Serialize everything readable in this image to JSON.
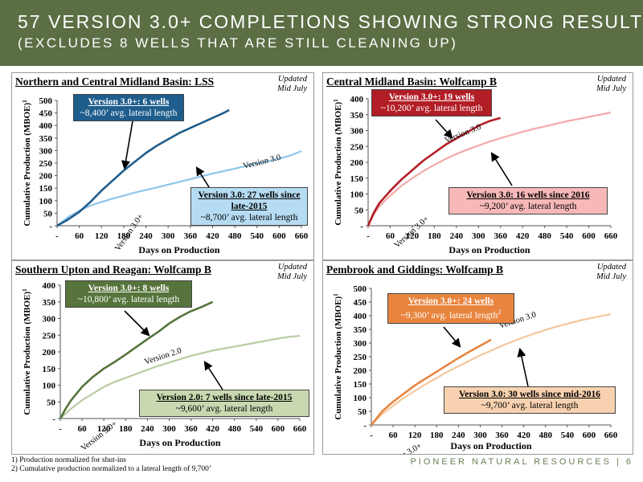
{
  "header": {
    "title": "57 VERSION 3.0+ COMPLETIONS SHOWING STRONG RESULTS",
    "subtitle": "(EXCLUDES 8 WELLS THAT ARE STILL CLEANING UP)"
  },
  "footnotes": [
    "1)   Production normalized for shut-ins",
    "2)   Cumulative production normalized to a lateral length of 9,700’"
  ],
  "brand": {
    "name": "PIONEER NATURAL RESOURCES",
    "separator": "|",
    "page": "6"
  },
  "colors": {
    "header_bg": "#5b6e44"
  },
  "chart_data": [
    {
      "type": "line",
      "title": "Northern and Central Midland Basin: LSS",
      "updated": "Updated Mid July",
      "xlabel": "Days on Production",
      "ylabel": "Cumulative Production (MBOE)",
      "ylabel_sup": "1",
      "xlim": [
        0,
        660
      ],
      "ylim": [
        0,
        500
      ],
      "xticks": [
        0,
        60,
        120,
        180,
        240,
        300,
        360,
        420,
        480,
        540,
        600,
        660
      ],
      "yticks": [
        0,
        50,
        100,
        150,
        200,
        250,
        300,
        350,
        400,
        450,
        500
      ],
      "series": [
        {
          "name": "Version 3.0+",
          "color": "#1f5d8c",
          "x": [
            0,
            30,
            60,
            90,
            120,
            150,
            180,
            210,
            240,
            270,
            300,
            330,
            360,
            390,
            420,
            450,
            465
          ],
          "y": [
            0,
            25,
            55,
            95,
            140,
            180,
            220,
            255,
            290,
            320,
            345,
            370,
            390,
            410,
            430,
            450,
            462
          ]
        },
        {
          "name": "Version 3.0",
          "color": "#8ec6ea",
          "x": [
            0,
            30,
            60,
            90,
            120,
            150,
            180,
            210,
            240,
            270,
            300,
            330,
            360,
            390,
            420,
            450,
            480,
            510,
            540,
            570,
            600,
            630,
            660
          ],
          "y": [
            0,
            35,
            60,
            80,
            95,
            108,
            120,
            132,
            143,
            153,
            164,
            175,
            186,
            197,
            208,
            218,
            228,
            238,
            248,
            258,
            268,
            280,
            298
          ]
        }
      ],
      "callouts": [
        {
          "head": "Version 3.0+: 6 wells",
          "body": "~8,400’ avg. lateral length",
          "fill": "#1f5d8c",
          "text": "#ffffff"
        },
        {
          "head": "Version 3.0: 27 wells since late-2015",
          "body": "~8,700’ avg. lateral length",
          "fill": "#b6dcf3",
          "text": "#000000"
        }
      ]
    },
    {
      "type": "line",
      "title": "Central Midland Basin: Wolfcamp B",
      "updated": "Updated Mid July",
      "xlabel": "Days on Production",
      "ylabel": "Cumulative Production (MBOE)",
      "ylabel_sup": "1",
      "xlim": [
        0,
        660
      ],
      "ylim": [
        0,
        400
      ],
      "xticks": [
        0,
        60,
        120,
        180,
        240,
        300,
        360,
        420,
        480,
        540,
        600,
        660
      ],
      "yticks": [
        0,
        50,
        100,
        150,
        200,
        250,
        300,
        350,
        400
      ],
      "series": [
        {
          "name": "Version 3.0+",
          "color": "#b21e26",
          "x": [
            0,
            15,
            30,
            60,
            90,
            120,
            150,
            180,
            210,
            240,
            270,
            300,
            330,
            360
          ],
          "y": [
            0,
            40,
            70,
            110,
            145,
            175,
            205,
            230,
            255,
            275,
            295,
            315,
            330,
            340
          ]
        },
        {
          "name": "Version 3.0",
          "color": "#f3a9a9",
          "x": [
            0,
            15,
            30,
            60,
            90,
            120,
            150,
            180,
            210,
            240,
            270,
            300,
            330,
            360,
            390,
            420,
            450,
            480,
            510,
            540,
            570,
            600,
            630,
            660
          ],
          "y": [
            0,
            35,
            60,
            95,
            125,
            150,
            172,
            192,
            210,
            226,
            240,
            253,
            265,
            276,
            286,
            296,
            305,
            313,
            321,
            329,
            336,
            343,
            350,
            357
          ]
        }
      ],
      "callouts": [
        {
          "head": "Version 3.0+: 19 wells",
          "body": "~10,200’ avg. lateral length",
          "fill": "#b21e26",
          "text": "#ffffff"
        },
        {
          "head": "Version 3.0: 16 wells since 2016",
          "body": "~9,200’ avg. lateral length",
          "fill": "#f7b8b8",
          "text": "#000000"
        }
      ]
    },
    {
      "type": "line",
      "title": "Southern Upton and Reagan: Wolfcamp B",
      "updated": "Updated Mid July",
      "xlabel": "Days on Production",
      "ylabel": "Cumulative Production (MBOE)",
      "ylabel_sup": "1",
      "xlim": [
        0,
        660
      ],
      "ylim": [
        0,
        400
      ],
      "xticks": [
        0,
        60,
        120,
        180,
        240,
        300,
        360,
        420,
        480,
        540,
        600,
        660
      ],
      "yticks": [
        0,
        50,
        100,
        150,
        200,
        250,
        300,
        350,
        400
      ],
      "series": [
        {
          "name": "Version 3.0+",
          "color": "#56743b",
          "x": [
            0,
            15,
            30,
            60,
            90,
            120,
            150,
            180,
            210,
            240,
            270,
            300,
            330,
            360,
            390,
            420
          ],
          "y": [
            0,
            30,
            55,
            95,
            125,
            150,
            170,
            192,
            215,
            238,
            260,
            285,
            305,
            322,
            335,
            350
          ]
        },
        {
          "name": "Version 2.0",
          "color": "#b9cba1",
          "x": [
            0,
            30,
            60,
            90,
            120,
            150,
            180,
            210,
            240,
            270,
            300,
            330,
            360,
            390,
            420,
            450,
            480,
            510,
            540,
            570,
            600,
            630,
            660
          ],
          "y": [
            0,
            30,
            55,
            75,
            95,
            110,
            122,
            134,
            146,
            158,
            168,
            178,
            188,
            196,
            204,
            210,
            216,
            222,
            228,
            234,
            240,
            245,
            248
          ]
        }
      ],
      "callouts": [
        {
          "head": "Version 3.0+: 8 wells",
          "body": "~10,800’ avg. lateral length",
          "fill": "#56743b",
          "text": "#ffffff"
        },
        {
          "head": "Version 2.0: 7 wells since late-2015",
          "body": "~9,600’ avg. lateral length",
          "fill": "#c8d8b0",
          "text": "#000000"
        }
      ]
    },
    {
      "type": "line",
      "title": "Pembrook and Giddings: Wolfcamp B",
      "updated": "Updated Mid July",
      "xlabel": "Days on Production",
      "ylabel": "Cumulative Production (MBOE)",
      "ylabel_sup": "1",
      "xlim": [
        0,
        660
      ],
      "ylim": [
        0,
        500
      ],
      "xticks": [
        0,
        60,
        120,
        180,
        240,
        300,
        360,
        420,
        480,
        540,
        600,
        660
      ],
      "yticks": [
        0,
        50,
        100,
        150,
        200,
        250,
        300,
        350,
        400,
        450,
        500
      ],
      "series": [
        {
          "name": "Version 3.0+",
          "color": "#e8843e",
          "x": [
            0,
            15,
            30,
            60,
            90,
            120,
            150,
            180,
            210,
            240,
            270,
            300,
            330
          ],
          "y": [
            0,
            25,
            50,
            85,
            115,
            145,
            170,
            195,
            220,
            245,
            268,
            290,
            312
          ]
        },
        {
          "name": "Version 3.0",
          "color": "#f5c79d",
          "x": [
            0,
            30,
            60,
            90,
            120,
            150,
            180,
            210,
            240,
            270,
            300,
            330,
            360,
            390,
            420,
            450,
            480,
            510,
            540,
            570,
            600,
            630,
            660
          ],
          "y": [
            0,
            40,
            70,
            100,
            125,
            150,
            172,
            195,
            215,
            235,
            255,
            272,
            290,
            306,
            321,
            335,
            348,
            360,
            371,
            381,
            390,
            398,
            405
          ]
        }
      ],
      "callouts": [
        {
          "head": "Version 3.0+: 24 wells",
          "body": "~9,300’ avg. lateral length",
          "body_sup": "2",
          "fill": "#e8843e",
          "text": "#ffffff"
        },
        {
          "head": "Version 3.0: 30 wells since mid-2016",
          "body": "~9,700’ avg. lateral length",
          "fill": "#f8d2b0",
          "text": "#000000"
        }
      ]
    }
  ]
}
